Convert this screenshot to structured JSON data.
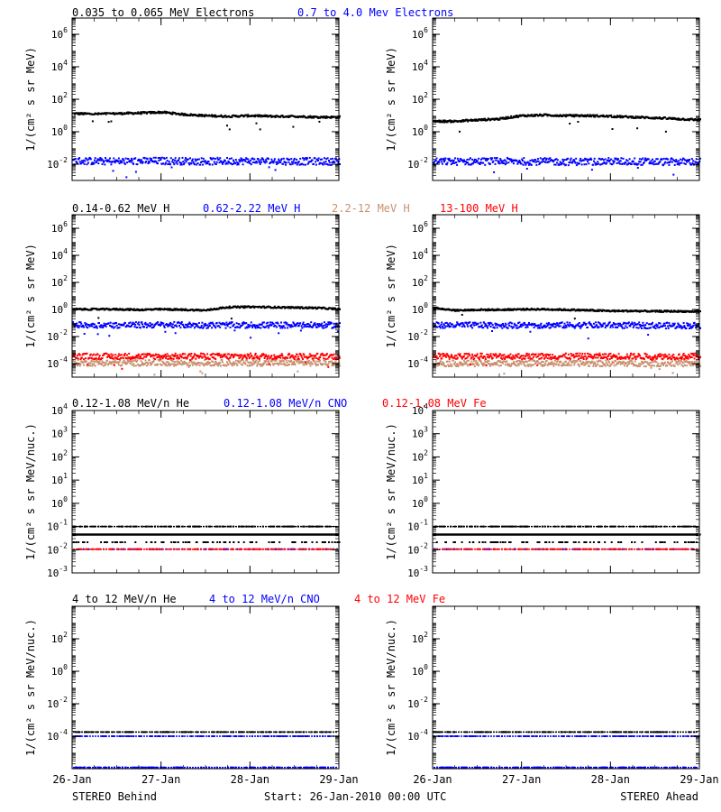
{
  "colors": {
    "black": "#000000",
    "blue": "#0000ff",
    "red": "#ff0000",
    "tan": "#c8906e"
  },
  "x_axis": {
    "ticks": [
      "26-Jan",
      "27-Jan",
      "28-Jan",
      "29-Jan"
    ],
    "range_days": [
      0,
      3
    ]
  },
  "footer": {
    "left": "STEREO Behind",
    "center": "Start: 26-Jan-2010 00:00 UTC",
    "right": "STEREO Ahead"
  },
  "chart_data": [
    {
      "type": "scatter",
      "row": "electrons",
      "spacecraft": "STEREO Behind",
      "ylabel": "1/(cm² s sr MeV)",
      "ylim_log10": [
        -3,
        7
      ],
      "yticks": [
        {
          "exp": -2,
          "label": "10^-2"
        },
        {
          "exp": 0,
          "label": "10^0"
        },
        {
          "exp": 2,
          "label": "10^2"
        },
        {
          "exp": 4,
          "label": "10^4"
        },
        {
          "exp": 6,
          "label": "10^6"
        }
      ],
      "series": [
        {
          "name": "0.035 to 0.065 MeV Electrons",
          "color": "#000000",
          "x_days": [
            0,
            0.25,
            0.5,
            0.75,
            1.0,
            1.25,
            1.5,
            1.75,
            2.0,
            2.25,
            2.5,
            2.75,
            3.0
          ],
          "y": [
            15,
            14,
            15,
            16,
            18,
            13,
            11,
            10,
            11,
            10,
            10,
            9,
            9
          ]
        },
        {
          "name": "0.7 to 4.0 Mev Electrons",
          "color": "#0000ff",
          "x_days": [
            0,
            0.5,
            1.0,
            1.5,
            2.0,
            2.5,
            3.0
          ],
          "y": [
            0.018,
            0.017,
            0.018,
            0.017,
            0.018,
            0.017,
            0.017
          ]
        }
      ]
    },
    {
      "type": "scatter",
      "row": "electrons",
      "spacecraft": "STEREO Ahead",
      "ylabel": "1/(cm² s sr MeV)",
      "ylim_log10": [
        -3,
        7
      ],
      "yticks": [
        {
          "exp": -2,
          "label": "10^-2"
        },
        {
          "exp": 0,
          "label": "10^0"
        },
        {
          "exp": 2,
          "label": "10^2"
        },
        {
          "exp": 4,
          "label": "10^4"
        },
        {
          "exp": 6,
          "label": "10^6"
        }
      ],
      "series": [
        {
          "name": "0.035 to 0.065 MeV Electrons",
          "color": "#000000",
          "x_days": [
            0,
            0.25,
            0.5,
            0.75,
            1.0,
            1.25,
            1.5,
            1.75,
            2.0,
            2.25,
            2.5,
            2.75,
            3.0
          ],
          "y": [
            5,
            5,
            6,
            7,
            11,
            12,
            11,
            11,
            10,
            9,
            8,
            7,
            6
          ]
        },
        {
          "name": "0.7 to 4.0 Mev Electrons",
          "color": "#0000ff",
          "x_days": [
            0,
            0.5,
            1.0,
            1.5,
            2.0,
            2.5,
            3.0
          ],
          "y": [
            0.016,
            0.017,
            0.017,
            0.016,
            0.017,
            0.016,
            0.016
          ]
        }
      ]
    },
    {
      "type": "scatter",
      "row": "protons",
      "spacecraft": "STEREO Behind",
      "ylabel": "1/(cm² s sr MeV)",
      "ylim_log10": [
        -5,
        7
      ],
      "yticks": [
        {
          "exp": -4,
          "label": "10^-4"
        },
        {
          "exp": -2,
          "label": "10^-2"
        },
        {
          "exp": 0,
          "label": "10^0"
        },
        {
          "exp": 2,
          "label": "10^2"
        },
        {
          "exp": 4,
          "label": "10^4"
        },
        {
          "exp": 6,
          "label": "10^6"
        }
      ],
      "series": [
        {
          "name": "0.14-0.62 MeV H",
          "color": "#000000",
          "x_days": [
            0,
            0.25,
            0.5,
            0.75,
            1.0,
            1.25,
            1.5,
            1.75,
            2.0,
            2.25,
            2.5,
            2.75,
            3.0
          ],
          "y": [
            1.2,
            1.2,
            1.2,
            1.1,
            1.2,
            1.1,
            1.0,
            1.7,
            1.8,
            1.7,
            1.6,
            1.5,
            1.2
          ]
        },
        {
          "name": "0.62-2.22 MeV H",
          "color": "#0000ff",
          "x_days": [
            0,
            0.5,
            1.0,
            1.5,
            2.0,
            2.5,
            3.0
          ],
          "y": [
            0.085,
            0.08,
            0.085,
            0.08,
            0.08,
            0.08,
            0.08
          ]
        },
        {
          "name": "2.2-12 MeV H",
          "color": "#c8906e",
          "x_days": [
            0,
            0.5,
            1.0,
            1.5,
            2.0,
            2.5,
            3.0
          ],
          "y": [
            0.00013,
            0.00013,
            0.00013,
            0.00013,
            0.00013,
            0.00013,
            0.00013
          ]
        },
        {
          "name": "13-100 MeV H",
          "color": "#ff0000",
          "x_days": [
            0,
            0.5,
            1.0,
            1.5,
            2.0,
            2.5,
            3.0
          ],
          "y": [
            0.0004,
            0.0004,
            0.0004,
            0.0004,
            0.0004,
            0.0004,
            0.0004
          ]
        }
      ]
    },
    {
      "type": "scatter",
      "row": "protons",
      "spacecraft": "STEREO Ahead",
      "ylabel": "1/(cm² s sr MeV)",
      "ylim_log10": [
        -5,
        7
      ],
      "yticks": [
        {
          "exp": -4,
          "label": "10^-4"
        },
        {
          "exp": -2,
          "label": "10^-2"
        },
        {
          "exp": 0,
          "label": "10^0"
        },
        {
          "exp": 2,
          "label": "10^2"
        },
        {
          "exp": 4,
          "label": "10^4"
        },
        {
          "exp": 6,
          "label": "10^6"
        }
      ],
      "series": [
        {
          "name": "0.14-0.62 MeV H",
          "color": "#000000",
          "x_days": [
            0,
            0.25,
            0.5,
            0.75,
            1.0,
            1.25,
            1.5,
            1.75,
            2.0,
            2.25,
            2.5,
            2.75,
            3.0
          ],
          "y": [
            1.5,
            1.0,
            1.1,
            1.1,
            1.2,
            1.2,
            1.1,
            1.0,
            0.9,
            0.9,
            0.85,
            0.85,
            0.8
          ]
        },
        {
          "name": "0.62-2.22 MeV H",
          "color": "#0000ff",
          "x_days": [
            0,
            0.5,
            1.0,
            1.5,
            2.0,
            2.5,
            3.0
          ],
          "y": [
            0.08,
            0.08,
            0.08,
            0.08,
            0.08,
            0.075,
            0.075
          ]
        },
        {
          "name": "2.2-12 MeV H",
          "color": "#c8906e",
          "x_days": [
            0,
            0.5,
            1.0,
            1.5,
            2.0,
            2.5,
            3.0
          ],
          "y": [
            0.00012,
            0.00012,
            0.00012,
            0.00012,
            0.00012,
            0.00012,
            0.00012
          ]
        },
        {
          "name": "13-100 MeV H",
          "color": "#ff0000",
          "x_days": [
            0,
            0.5,
            1.0,
            1.5,
            2.0,
            2.5,
            3.0
          ],
          "y": [
            0.0004,
            0.0004,
            0.0004,
            0.0004,
            0.0004,
            0.0004,
            0.0004
          ]
        }
      ]
    },
    {
      "type": "scatter",
      "row": "heavy-low",
      "spacecraft": "STEREO Behind",
      "ylabel": "1/(cm² s sr MeV/nuc.)",
      "ylim_log10": [
        -3,
        4
      ],
      "yticks": [
        {
          "exp": -3,
          "label": "10^-3"
        },
        {
          "exp": -2,
          "label": "10^-2"
        },
        {
          "exp": -1,
          "label": "10^-1"
        },
        {
          "exp": 0,
          "label": "10^0"
        },
        {
          "exp": 1,
          "label": "10^1"
        },
        {
          "exp": 2,
          "label": "10^2"
        },
        {
          "exp": 3,
          "label": "10^3"
        },
        {
          "exp": 4,
          "label": "10^4"
        }
      ],
      "series": [
        {
          "name": "0.12-1.08 MeV/n He",
          "color": "#000000",
          "levels": [
            0.1,
            0.045,
            0.021
          ],
          "x_range_days": [
            0,
            3
          ]
        },
        {
          "name": "0.12-1.08 MeV/n CNO",
          "color": "#0000ff",
          "levels": [
            0.0105
          ],
          "x_range_days": [
            0,
            3
          ]
        },
        {
          "name": "0.12-1.08 MeV Fe",
          "color": "#ff0000",
          "levels": [
            0.0105
          ],
          "x_range_days": [
            0,
            3
          ]
        }
      ]
    },
    {
      "type": "scatter",
      "row": "heavy-low",
      "spacecraft": "STEREO Ahead",
      "ylabel": "1/(cm² s sr MeV/nuc.)",
      "ylim_log10": [
        -3,
        4
      ],
      "yticks": [
        {
          "exp": -3,
          "label": "10^-3"
        },
        {
          "exp": -2,
          "label": "10^-2"
        },
        {
          "exp": -1,
          "label": "10^-1"
        },
        {
          "exp": 0,
          "label": "10^0"
        },
        {
          "exp": 1,
          "label": "10^1"
        },
        {
          "exp": 2,
          "label": "10^2"
        },
        {
          "exp": 3,
          "label": "10^3"
        },
        {
          "exp": 4,
          "label": "10^4"
        }
      ],
      "series": [
        {
          "name": "0.12-1.08 MeV/n He",
          "color": "#000000",
          "levels": [
            0.1,
            0.045,
            0.021
          ],
          "x_range_days": [
            0,
            3
          ]
        },
        {
          "name": "0.12-1.08 MeV/n CNO",
          "color": "#0000ff",
          "levels": [
            0.0105
          ],
          "x_range_days": [
            0,
            3
          ]
        },
        {
          "name": "0.12-1.08 MeV Fe",
          "color": "#ff0000",
          "levels": [
            0.0105
          ],
          "x_range_days": [
            0,
            3
          ]
        }
      ]
    },
    {
      "type": "scatter",
      "row": "heavy-high",
      "spacecraft": "STEREO Behind",
      "ylabel": "1/(cm² s sr MeV/nuc.)",
      "ylim_log10": [
        -6,
        4
      ],
      "yticks": [
        {
          "exp": -4,
          "label": "10^-4"
        },
        {
          "exp": -2,
          "label": "10^-2"
        },
        {
          "exp": 0,
          "label": "10^0"
        },
        {
          "exp": 2,
          "label": "10^2"
        }
      ],
      "series": [
        {
          "name": "4 to 12 MeV/n He",
          "color": "#000000",
          "levels": [
            0.00018
          ],
          "x_range_days": [
            0,
            3
          ]
        },
        {
          "name": "4 to 12 MeV/n CNO",
          "color": "#0000ff",
          "levels": [
            0.0001,
            1.2e-06
          ],
          "x_range_days": [
            0,
            3
          ]
        },
        {
          "name": "4 to 12 MeV Fe",
          "color": "#ff0000",
          "levels": [],
          "x_range_days": [
            0,
            3
          ]
        }
      ]
    },
    {
      "type": "scatter",
      "row": "heavy-high",
      "spacecraft": "STEREO Ahead",
      "ylabel": "1/(cm² s sr MeV/nuc.)",
      "ylim_log10": [
        -6,
        4
      ],
      "yticks": [
        {
          "exp": -4,
          "label": "10^-4"
        },
        {
          "exp": -2,
          "label": "10^-2"
        },
        {
          "exp": 0,
          "label": "10^0"
        },
        {
          "exp": 2,
          "label": "10^2"
        }
      ],
      "series": [
        {
          "name": "4 to 12 MeV/n He",
          "color": "#000000",
          "levels": [
            0.00018
          ],
          "x_range_days": [
            0,
            3
          ]
        },
        {
          "name": "4 to 12 MeV/n CNO",
          "color": "#0000ff",
          "levels": [
            0.0001,
            1.2e-06
          ],
          "x_range_days": [
            0,
            3
          ]
        },
        {
          "name": "4 to 12 MeV Fe",
          "color": "#ff0000",
          "levels": [],
          "x_range_days": [
            0,
            3
          ]
        }
      ]
    }
  ]
}
